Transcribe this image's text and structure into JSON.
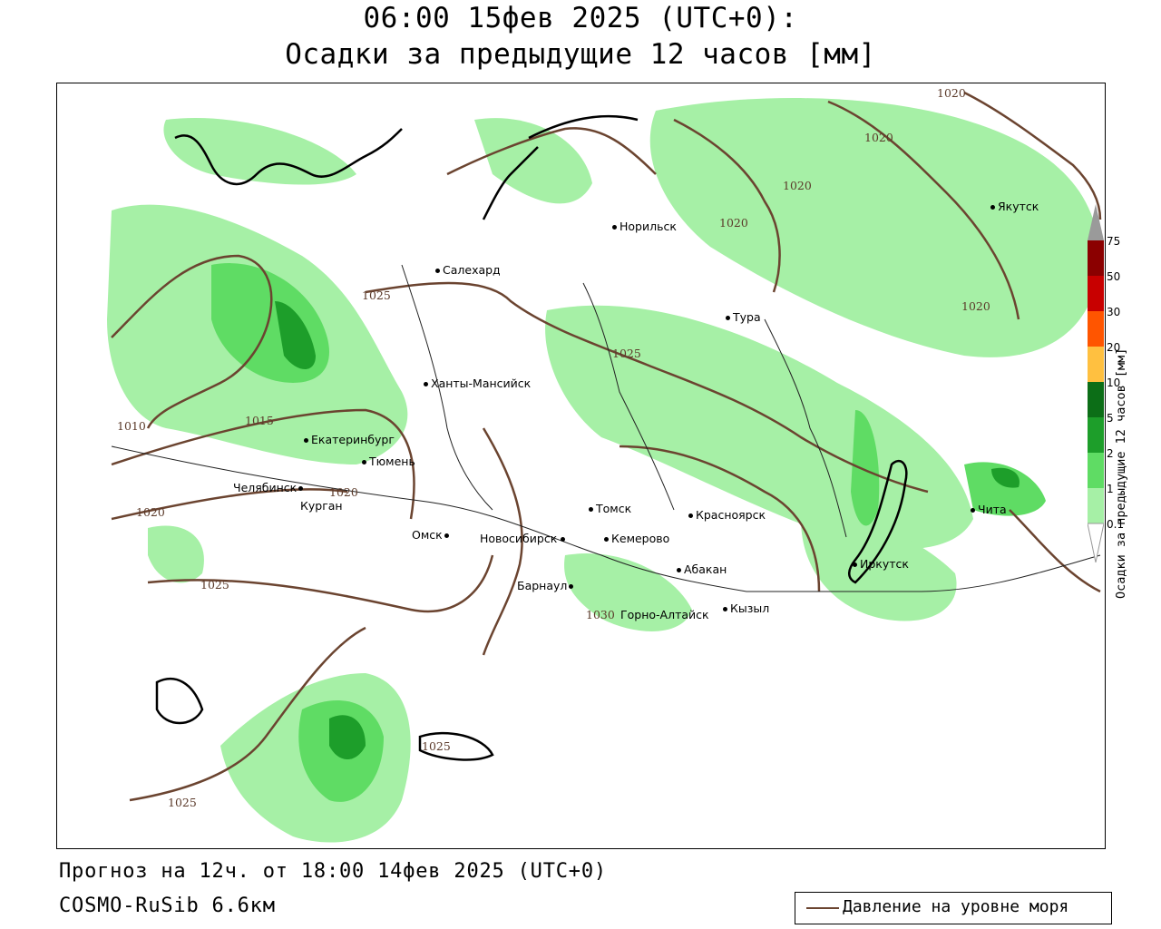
{
  "header": {
    "title_line1": "06:00 15фев 2025 (UTC+0):",
    "title_line2": "Осадки за предыдущие 12 часов [мм]"
  },
  "map": {
    "cities": [
      {
        "name": "Норильск"
      },
      {
        "name": "Якутск"
      },
      {
        "name": "Салехард"
      },
      {
        "name": "Тура"
      },
      {
        "name": "Ханты-Мансийск"
      },
      {
        "name": "Екатеринбург"
      },
      {
        "name": "Тюмень"
      },
      {
        "name": "Челябинск"
      },
      {
        "name": "Курган"
      },
      {
        "name": "Омск"
      },
      {
        "name": "Новосибирск"
      },
      {
        "name": "Томск"
      },
      {
        "name": "Кемерово"
      },
      {
        "name": "Красноярск"
      },
      {
        "name": "Барнаул"
      },
      {
        "name": "Абакан"
      },
      {
        "name": "Горно-Алтайск"
      },
      {
        "name": "Кызыл"
      },
      {
        "name": "Иркутск"
      },
      {
        "name": "Чита"
      }
    ],
    "isobar_labels": [
      "1020",
      "1020",
      "1020",
      "1020",
      "1020",
      "1025",
      "1025",
      "1010",
      "1015",
      "1020",
      "1020",
      "1025",
      "1030",
      "1025",
      "1025"
    ],
    "colors": {
      "precip_light": "#a6f0a6",
      "precip_mid": "#5fdc64",
      "precip_heavy": "#1d9e2a",
      "precip_very_heavy": "#0c6e17",
      "isobar": "#6b4430",
      "coast": "#000000"
    }
  },
  "colorbar": {
    "labels": [
      "75",
      "50",
      "30",
      "20",
      "10",
      "5",
      "2",
      "1",
      "0.1"
    ],
    "colors": [
      "#8b0000",
      "#c80000",
      "#ff5500",
      "#ff9900",
      "#ffc040",
      "#0c6e17",
      "#1d9e2a",
      "#5fdc64",
      "#a6f0a6",
      "#ffffff"
    ],
    "title": "Осадки за предыдущие 12 часов [мм]"
  },
  "footer": {
    "forecast": "Прогноз на 12ч. от 18:00 14фев 2025 (UTC+0)",
    "model": "COSMO-RuSib 6.6км"
  },
  "legend": {
    "label": "Давление на уровне моря"
  }
}
